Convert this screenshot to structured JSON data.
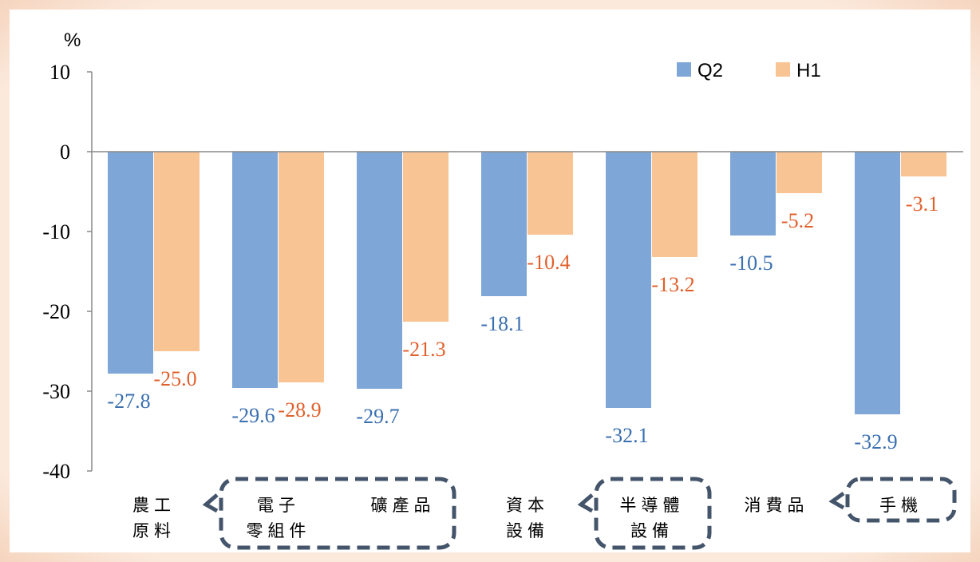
{
  "chart_data": {
    "type": "bar",
    "y_unit": "%",
    "categories": [
      "農工\n原料",
      "電子\n零組件",
      "礦產品",
      "資本\n設備",
      "半導體\n設備",
      "消費品",
      "手機"
    ],
    "series": [
      {
        "name": "Q2",
        "color": "#7ea6d6",
        "label_color": "#3a6fb0",
        "values": [
          -27.8,
          -29.6,
          -29.7,
          -18.1,
          -32.1,
          -10.5,
          -32.9
        ]
      },
      {
        "name": "H1",
        "color": "#f8c493",
        "label_color": "#e0602c",
        "values": [
          -25.0,
          -28.9,
          -21.3,
          -10.4,
          -13.2,
          -5.2,
          -3.1
        ],
        "value_labels": [
          "-25.0",
          "-28.9",
          "-21.3",
          "-10.4",
          "-13.2",
          "-5.2",
          "-3.1"
        ]
      }
    ],
    "ylim": [
      -40,
      10
    ],
    "yticks": [
      -40,
      -30,
      -20,
      -10,
      0,
      10
    ],
    "legend": "top-right"
  }
}
